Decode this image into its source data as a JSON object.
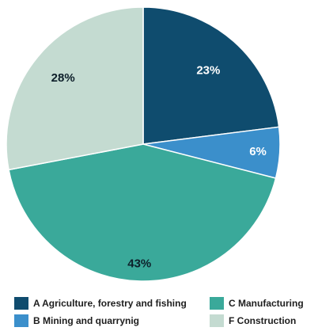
{
  "chart_data": {
    "type": "pie",
    "slices": [
      {
        "label": "A Agriculture, forestry and fishing",
        "value": 23,
        "value_label": "23%",
        "color": "#0f4c6e",
        "label_color": "#ffffff"
      },
      {
        "label": "B Mining and quarrynig",
        "value": 6,
        "value_label": "6%",
        "color": "#3b8fcb",
        "label_color": "#ffffff"
      },
      {
        "label": "C Manufacturing",
        "value": 43,
        "value_label": "43%",
        "color": "#3aa99a",
        "label_color": "#0d1f2a"
      },
      {
        "label": "F Construction",
        "value": 28,
        "value_label": "28%",
        "color": "#c4dbd1",
        "label_color": "#0d1f2a"
      }
    ],
    "start_angle": "12 o'clock",
    "direction": "clockwise",
    "legend_position": "bottom"
  }
}
